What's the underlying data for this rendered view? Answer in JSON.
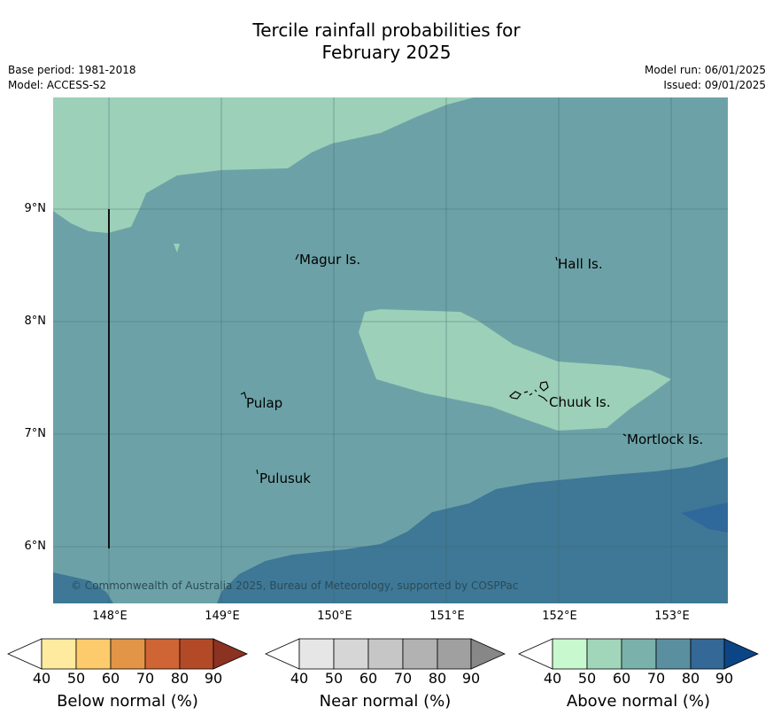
{
  "title": {
    "line1": "Tercile rainfall probabilities for",
    "line2": "February 2025"
  },
  "meta": {
    "base_period": "Base period: 1981-2018",
    "model": "Model: ACCESS-S2",
    "model_run": "Model run: 06/01/2025",
    "issued": "Issued: 09/01/2025"
  },
  "map": {
    "lat_ticks": [
      "9°N",
      "8°N",
      "7°N",
      "6°N"
    ],
    "lon_ticks": [
      "148°E",
      "149°E",
      "150°E",
      "151°E",
      "152°E",
      "153°E"
    ],
    "places": {
      "magur": "Magur Is.",
      "hall": "Hall Is.",
      "pulap": "Pulap",
      "chuuk": "Chuuk Is.",
      "mortlock": "Mortlock Is.",
      "pulusuk": "Pulusuk"
    },
    "copyright": "© Commonwealth of Australia 2025, Bureau of Meteorology, supported by COSPPac",
    "colors": {
      "above_60_70": "#6ca2a7",
      "above_50_60": "#9cd0b8",
      "above_70_80": "#3e7896",
      "above_80_90_patch": "#2f689a",
      "gridline": "#3c5f66"
    }
  },
  "legends": {
    "tick_values": [
      "40",
      "50",
      "60",
      "70",
      "80",
      "90"
    ],
    "below": {
      "label": "Below normal (%)",
      "colors": [
        "#ffffff",
        "#feeba0",
        "#fdcb6b",
        "#e29546",
        "#cf6434",
        "#b34a27",
        "#8c3222"
      ]
    },
    "near": {
      "label": "Near normal (%)",
      "colors": [
        "#ffffff",
        "#e6e6e6",
        "#d6d6d6",
        "#c6c6c6",
        "#b2b2b2",
        "#a0a0a0",
        "#878787"
      ]
    },
    "above": {
      "label": "Above normal (%)",
      "colors": [
        "#ffffff",
        "#c8f8cd",
        "#a1d6bb",
        "#7ab2ab",
        "#5a8fa0",
        "#336897",
        "#0c4585"
      ]
    }
  }
}
